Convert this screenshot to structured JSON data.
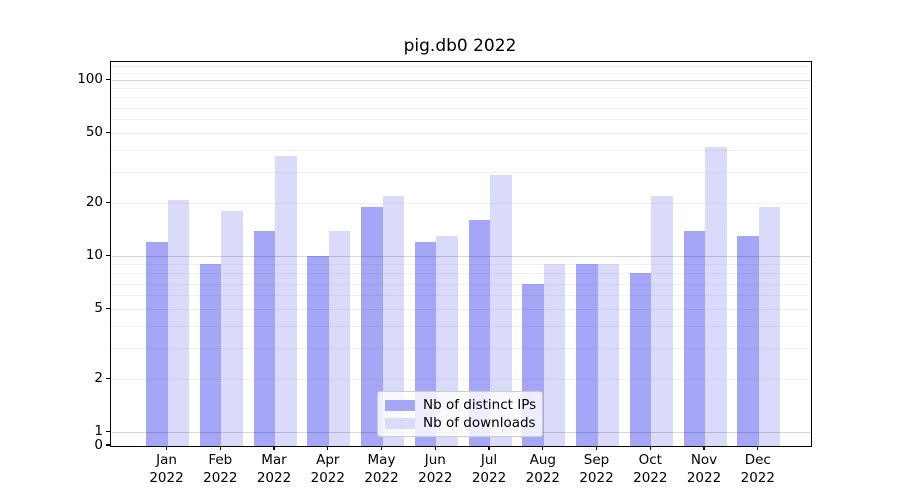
{
  "chart_data": {
    "type": "bar",
    "title": "pig.db0 2022",
    "categories": [
      "Jan",
      "Feb",
      "Mar",
      "Apr",
      "May",
      "Jun",
      "Jul",
      "Aug",
      "Sep",
      "Oct",
      "Nov",
      "Dec"
    ],
    "category_year": "2022",
    "series": [
      {
        "name": "Nb of distinct IPs",
        "color": "#a6a6f7",
        "values": [
          12,
          9,
          14,
          10,
          19,
          12,
          16,
          7,
          9,
          8,
          14,
          13
        ]
      },
      {
        "name": "Nb of downloads",
        "color": "#dadafb",
        "values": [
          21,
          18,
          37,
          14,
          22,
          13,
          29,
          9,
          9,
          22,
          42,
          19
        ]
      }
    ],
    "xlabel": "",
    "ylabel": "",
    "y_axis": {
      "scale": "symlog",
      "tick_labels": [
        "100",
        "50",
        "20",
        "10",
        "5",
        "2",
        "1",
        "0"
      ],
      "tick_values": [
        100,
        50,
        20,
        10,
        5,
        2,
        1,
        0
      ],
      "range": [
        0,
        127
      ],
      "grid_major_values": [
        1,
        10,
        100
      ],
      "grid_minor_values": [
        2,
        3,
        4,
        5,
        6,
        7,
        8,
        9,
        20,
        30,
        40,
        50,
        60,
        70,
        80,
        90,
        110,
        120
      ]
    },
    "grid": true,
    "legend_position": "lower center"
  }
}
